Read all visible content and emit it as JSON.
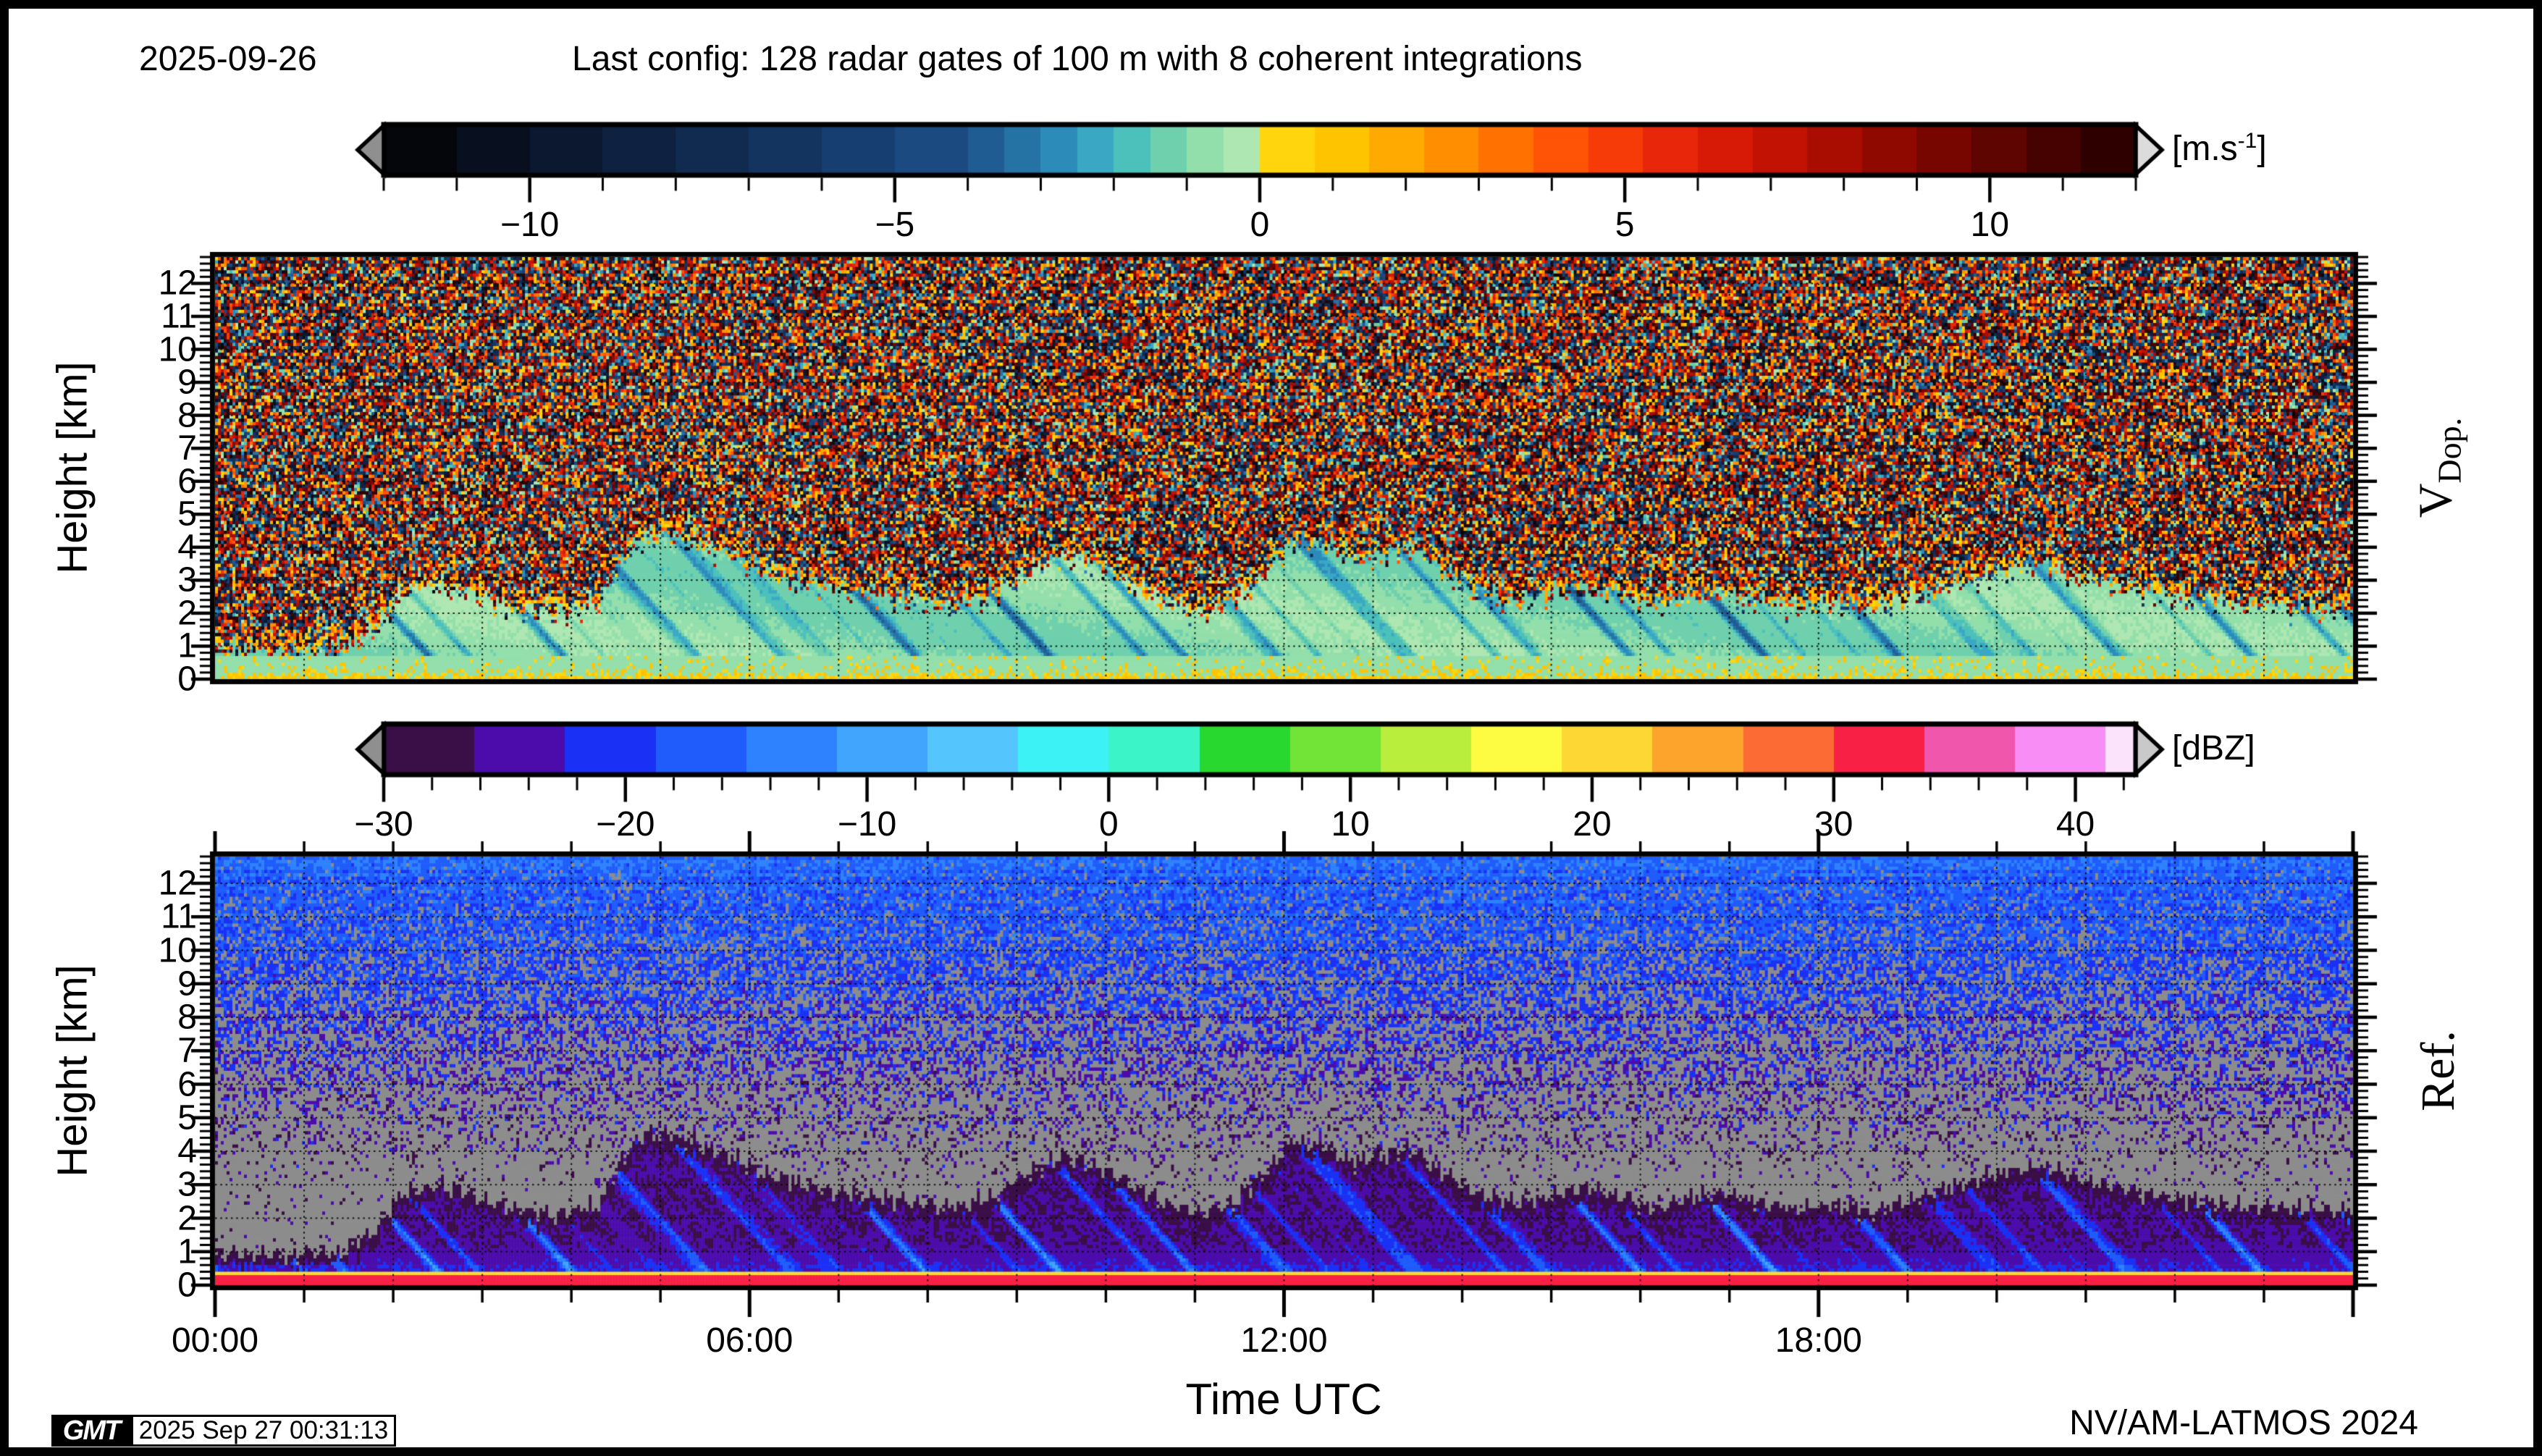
{
  "header": {
    "date": "2025-09-26",
    "title": "Last config: 128 radar gates of 100 m with 8 coherent integrations"
  },
  "footer": {
    "xlabel": "Time UTC",
    "credit": "NV/AM-LATMOS 2024",
    "logo": "GMT",
    "timestamp": "2025 Sep 27 00:31:13"
  },
  "chart_data": [
    {
      "type": "heatmap",
      "id": "doppler_velocity",
      "side_label": "V",
      "side_label_sub": "Dop.",
      "ylabel": "Height [km]",
      "x_axis": {
        "label": "Time UTC",
        "range_hours": [
          0,
          24
        ],
        "tick_hours": [
          0,
          6,
          12,
          18
        ],
        "tick_labels": [
          "00:00",
          "06:00",
          "12:00",
          "18:00"
        ],
        "minor_tick_step_hours": 1
      },
      "y_axis": {
        "range_km": [
          0,
          12.8
        ],
        "major_ticks": [
          0,
          1,
          2,
          3,
          4,
          5,
          6,
          7,
          8,
          9,
          10,
          11,
          12
        ],
        "minor_step_km": 0.2
      },
      "grid": {
        "style": "dotted",
        "x_step_hours": 1,
        "y_step_km": 1
      },
      "colorbar": {
        "unit_prefix": "[m.s",
        "unit_sup": "-1",
        "unit_suffix": "]",
        "range": [
          -12,
          12
        ],
        "major_ticks": [
          -10,
          -5,
          0,
          5,
          10
        ],
        "major_tick_labels": [
          "−10",
          "−5",
          "0",
          "5",
          "10"
        ],
        "minor_tick_step": 1,
        "arrow_left_color": "#8f8f8f",
        "arrow_right_color": "#dcdcdc",
        "stops": [
          [
            -12,
            "#04060c"
          ],
          [
            -11,
            "#08101f"
          ],
          [
            -10,
            "#0b1830"
          ],
          [
            -9,
            "#0e2140"
          ],
          [
            -8,
            "#112a50"
          ],
          [
            -7,
            "#143460"
          ],
          [
            -6,
            "#173e70"
          ],
          [
            -5,
            "#1b4a80"
          ],
          [
            -4,
            "#1f5c92"
          ],
          [
            -3.5,
            "#2572a5"
          ],
          [
            -3,
            "#2d8bba"
          ],
          [
            -2.5,
            "#3aa8c4"
          ],
          [
            -2,
            "#4cc0bb"
          ],
          [
            -1.5,
            "#6fd0ad"
          ],
          [
            -1,
            "#93dfab"
          ],
          [
            -0.5,
            "#aee7b2"
          ],
          [
            0,
            "#ffd60d"
          ],
          [
            0.75,
            "#ffc400"
          ],
          [
            1.5,
            "#ffaa00"
          ],
          [
            2.25,
            "#ff8f00"
          ],
          [
            3,
            "#ff7100"
          ],
          [
            3.75,
            "#ff5305"
          ],
          [
            4.5,
            "#f63a08"
          ],
          [
            5.25,
            "#e8270a"
          ],
          [
            6,
            "#d61a06"
          ],
          [
            6.75,
            "#c11203"
          ],
          [
            7.5,
            "#a90d02"
          ],
          [
            8.25,
            "#900901"
          ],
          [
            9,
            "#770601"
          ],
          [
            9.75,
            "#5e0401"
          ],
          [
            10.5,
            "#460201"
          ],
          [
            11.25,
            "#2e0100"
          ]
        ]
      },
      "signal": {
        "in_cloud_velocity_ms": [
          -4.5,
          -0.4
        ],
        "boundary_layer_top_km": 0.72,
        "boundary_layer_velocity_ms": -0.75,
        "ground_speckle_velocity_ms": [
          0.2,
          1.4
        ],
        "noise_velocity_range_ms": [
          -12,
          12
        ]
      },
      "echo_top_km_points": [
        [
          0,
          0.95
        ],
        [
          0.7,
          0.9
        ],
        [
          1.4,
          1.0
        ],
        [
          1.8,
          1.6
        ],
        [
          2.1,
          2.7
        ],
        [
          2.5,
          3.0
        ],
        [
          2.9,
          2.7
        ],
        [
          3.3,
          2.3
        ],
        [
          3.8,
          2.1
        ],
        [
          4.3,
          2.4
        ],
        [
          4.55,
          3.6
        ],
        [
          4.8,
          4.45
        ],
        [
          5.1,
          4.5
        ],
        [
          5.5,
          4.1
        ],
        [
          5.9,
          3.7
        ],
        [
          6.3,
          3.2
        ],
        [
          6.8,
          2.9
        ],
        [
          7.3,
          2.7
        ],
        [
          7.8,
          2.5
        ],
        [
          8.3,
          2.3
        ],
        [
          8.7,
          2.6
        ],
        [
          9.1,
          3.3
        ],
        [
          9.5,
          3.85
        ],
        [
          9.9,
          3.6
        ],
        [
          10.3,
          3.0
        ],
        [
          10.7,
          2.4
        ],
        [
          11.1,
          2.1
        ],
        [
          11.5,
          2.6
        ],
        [
          11.8,
          3.4
        ],
        [
          12.1,
          4.3
        ],
        [
          12.45,
          4.1
        ],
        [
          12.8,
          3.7
        ],
        [
          13.1,
          3.9
        ],
        [
          13.45,
          4.05
        ],
        [
          13.8,
          3.3
        ],
        [
          14.2,
          2.7
        ],
        [
          14.6,
          2.45
        ],
        [
          15.0,
          2.7
        ],
        [
          15.4,
          2.9
        ],
        [
          15.8,
          2.6
        ],
        [
          16.2,
          2.3
        ],
        [
          16.6,
          2.65
        ],
        [
          17.0,
          2.7
        ],
        [
          17.4,
          2.45
        ],
        [
          17.8,
          2.3
        ],
        [
          18.2,
          2.4
        ],
        [
          18.6,
          2.2
        ],
        [
          19.0,
          2.5
        ],
        [
          19.4,
          2.9
        ],
        [
          19.8,
          3.2
        ],
        [
          20.2,
          3.45
        ],
        [
          20.6,
          3.55
        ],
        [
          21.0,
          3.1
        ],
        [
          21.4,
          2.85
        ],
        [
          21.8,
          2.7
        ],
        [
          22.2,
          2.55
        ],
        [
          22.6,
          2.4
        ],
        [
          23.0,
          2.35
        ],
        [
          23.4,
          2.3
        ],
        [
          24,
          2.25
        ]
      ],
      "description": "Doppler velocity time-height plot: uniform full-range speckle noise above echo top; smooth pale-green (-1 m/s) cloud and precipitation fall streaks (teal/blue, -3 to -5 m/s) below; green boundary layer with yellow positive-velocity speckles near ground."
    },
    {
      "type": "heatmap",
      "id": "reflectivity",
      "side_label": "Ref.",
      "ylabel": "Height [km]",
      "x_axis": {
        "label": "Time UTC",
        "range_hours": [
          0,
          24
        ],
        "tick_hours": [
          0,
          6,
          12,
          18
        ],
        "tick_labels": [
          "00:00",
          "06:00",
          "12:00",
          "18:00"
        ],
        "minor_tick_step_hours": 1
      },
      "y_axis": {
        "range_km": [
          0,
          12.8
        ],
        "major_ticks": [
          0,
          1,
          2,
          3,
          4,
          5,
          6,
          7,
          8,
          9,
          10,
          11,
          12
        ],
        "minor_step_km": 0.2
      },
      "grid": {
        "style": "dotted",
        "x_step_hours": 1,
        "y_step_km": 1
      },
      "colorbar": {
        "unit": "[dBZ]",
        "range": [
          -30,
          42.5
        ],
        "major_ticks": [
          -30,
          -20,
          -10,
          0,
          10,
          20,
          30,
          40
        ],
        "major_tick_labels": [
          "−30",
          "−20",
          "−10",
          "0",
          "10",
          "20",
          "30",
          "40"
        ],
        "minor_tick_step": 2,
        "arrow_left_color": "#8f8f8f",
        "arrow_right_color": "#c9c9c9",
        "stops": [
          [
            -30,
            "#3a0e46"
          ],
          [
            -26.25,
            "#4c0cab"
          ],
          [
            -22.5,
            "#1b30f5"
          ],
          [
            -18.75,
            "#1f5cfb"
          ],
          [
            -15,
            "#2e82fd"
          ],
          [
            -11.25,
            "#41a4fd"
          ],
          [
            -7.5,
            "#55c5fe"
          ],
          [
            -3.75,
            "#3df2f4"
          ],
          [
            0,
            "#3bf5c8"
          ],
          [
            3.75,
            "#28d82e"
          ],
          [
            7.5,
            "#71e437"
          ],
          [
            11.25,
            "#b9ee3c"
          ],
          [
            15,
            "#fdfc43"
          ],
          [
            18.75,
            "#fdd835"
          ],
          [
            22.5,
            "#fca42c"
          ],
          [
            26.25,
            "#fb6b33"
          ],
          [
            30,
            "#f92045"
          ],
          [
            33.75,
            "#f156ad"
          ],
          [
            37.5,
            "#f78df5"
          ],
          [
            41.25,
            "#fce3fc"
          ]
        ]
      },
      "no_echo_color": "#8c8c8c",
      "ground_clutter": {
        "red_band_km": [
          0,
          0.28
        ],
        "red_band_dbz": 31.5,
        "yellow_band_km": [
          0.28,
          0.42
        ],
        "yellow_band_dbz": 19.7,
        "indigo_band_km": [
          0.42,
          0.62
        ],
        "indigo_band_dbz": -23.5
      },
      "noise_model": {
        "mean_dbz_at_top": -15.5,
        "mean_dbz_slope_per_km": 1.13,
        "echo_probability_zero_below_km": 3.0
      },
      "echo_top_km_points": "same as doppler panel",
      "description": "Radar reflectivity time-height plot: height-dependent blue/indigo noise speckle aloft fading to gray (no echo) at mid levels; blue precipitation fall streaks with bright cyan cores below echo top; continuous yellow and red ground-clutter bands near 0 km."
    }
  ]
}
